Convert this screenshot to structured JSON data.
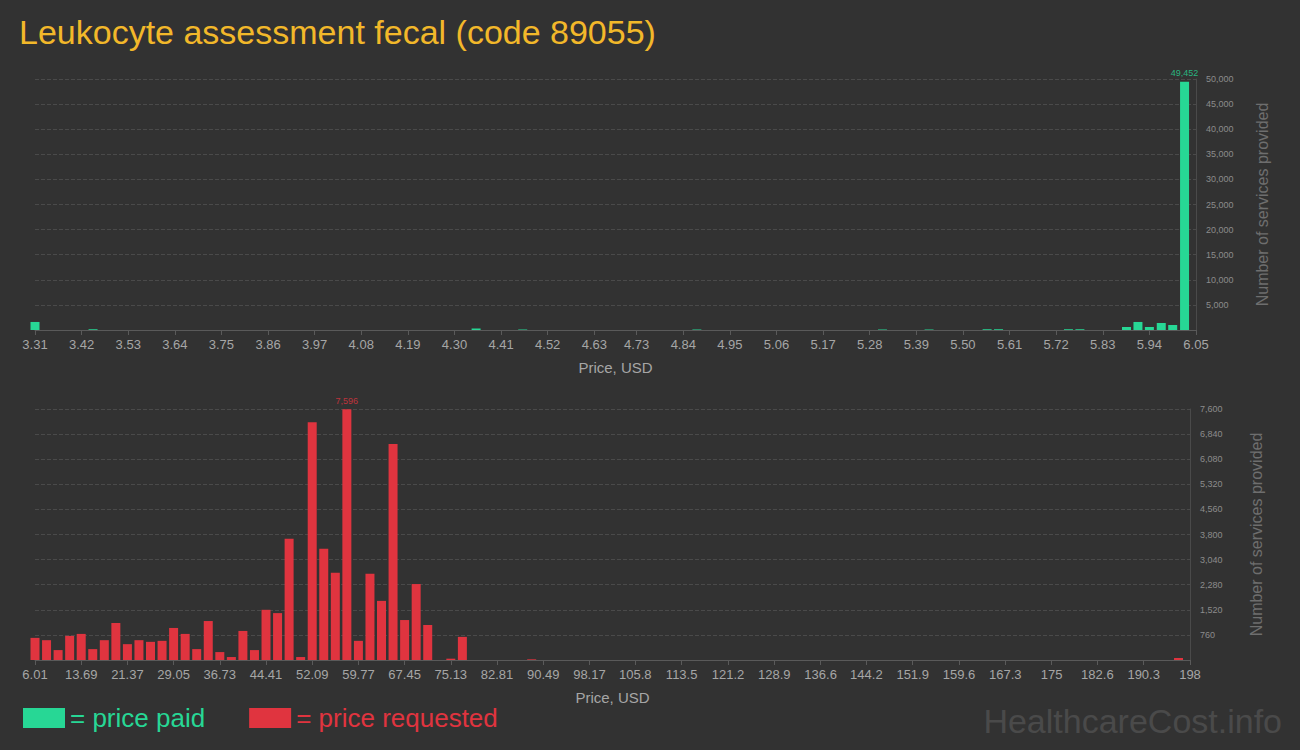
{
  "title": "Leukocyte assessment fecal (code 89055)",
  "watermark": "HealthcareCost.info",
  "chart_data": [
    {
      "type": "bar",
      "xlabel": "Price, USD",
      "ylabel": "Number of services provided",
      "xlim": [
        3.31,
        6.05
      ],
      "xticks": [
        3.31,
        3.42,
        3.53,
        3.64,
        3.75,
        3.86,
        3.97,
        4.08,
        4.19,
        {
          "value": 4.3,
          "label": "4.30"
        },
        4.41,
        4.52,
        4.63,
        4.73,
        4.84,
        4.95,
        5.06,
        5.17,
        5.28,
        5.39,
        {
          "value": 5.5,
          "label": "5.50"
        },
        5.61,
        5.72,
        5.83,
        5.94,
        6.05
      ],
      "ylim": [
        0,
        50000
      ],
      "yticks": [
        {
          "value": 5000,
          "label": "5,000"
        },
        {
          "value": 10000,
          "label": "10,000"
        },
        {
          "value": 15000,
          "label": "15,000"
        },
        {
          "value": 20000,
          "label": "20,000"
        },
        {
          "value": 25000,
          "label": "25,000"
        },
        {
          "value": 30000,
          "label": "30,000"
        },
        {
          "value": 35000,
          "label": "35,000"
        },
        {
          "value": 40000,
          "label": "40,000"
        },
        {
          "value": 45000,
          "label": "45,000"
        },
        {
          "value": 50000,
          "label": "50,000"
        }
      ],
      "grid": true,
      "series": [
        {
          "name": "= price paid",
          "color": "#27d795",
          "x": [
            3.31,
            3.447,
            4.351,
            4.461,
            4.872,
            5.31,
            5.42,
            5.557,
            5.584,
            5.749,
            5.776,
            5.886,
            5.913,
            5.94,
            5.968,
            5.995,
            6.023
          ],
          "values": [
            1600,
            150,
            300,
            100,
            100,
            100,
            100,
            150,
            150,
            150,
            150,
            600,
            1600,
            600,
            1400,
            1000,
            49452
          ]
        }
      ],
      "annotations": [
        {
          "x": 6.023,
          "y": 49452,
          "text": "49,452"
        }
      ]
    },
    {
      "type": "bar",
      "xlabel": "Price, USD",
      "ylabel": "Number of services provided",
      "xlim": [
        6.01,
        198
      ],
      "xticks": [
        6.01,
        13.69,
        21.37,
        29.05,
        36.73,
        44.41,
        52.09,
        59.77,
        67.45,
        75.13,
        82.81,
        90.49,
        98.17,
        105.8,
        113.5,
        121.2,
        128.9,
        136.6,
        144.2,
        151.9,
        159.6,
        167.3,
        175,
        182.6,
        190.3,
        198
      ],
      "ylim": [
        0,
        7600
      ],
      "yticks": [
        760,
        {
          "value": 1520,
          "label": "1,520"
        },
        {
          "value": 2280,
          "label": "2,280"
        },
        {
          "value": 3040,
          "label": "3,040"
        },
        {
          "value": 3800,
          "label": "3,800"
        },
        {
          "value": 4560,
          "label": "4,560"
        },
        {
          "value": 5320,
          "label": "5,320"
        },
        {
          "value": 6080,
          "label": "6,080"
        },
        {
          "value": 6840,
          "label": "6,840"
        },
        {
          "value": 7600,
          "label": "7,600"
        }
      ],
      "grid": true,
      "series": [
        {
          "name": "= price requested",
          "color": "#e0343f",
          "x": [
            6.01,
            7.93,
            9.85,
            11.77,
            13.69,
            15.61,
            17.53,
            19.45,
            21.37,
            23.29,
            25.21,
            27.13,
            29.05,
            30.97,
            32.89,
            34.81,
            36.73,
            38.65,
            40.57,
            42.49,
            44.41,
            46.33,
            48.25,
            50.17,
            52.09,
            54.01,
            55.93,
            57.85,
            59.77,
            61.69,
            63.61,
            65.53,
            67.45,
            69.37,
            71.29,
            75.13,
            77.05,
            88.57,
            196.09
          ],
          "values": [
            670,
            600,
            300,
            730,
            790,
            330,
            600,
            1120,
            480,
            600,
            550,
            580,
            970,
            790,
            330,
            1180,
            240,
            90,
            880,
            300,
            1520,
            1420,
            3670,
            90,
            7200,
            3370,
            2640,
            7596,
            580,
            2610,
            1790,
            6540,
            1210,
            2300,
            1060,
            40,
            700,
            20,
            60
          ]
        }
      ],
      "annotations": [
        {
          "x": 57.85,
          "y": 7596,
          "text": "7,596"
        }
      ]
    }
  ]
}
